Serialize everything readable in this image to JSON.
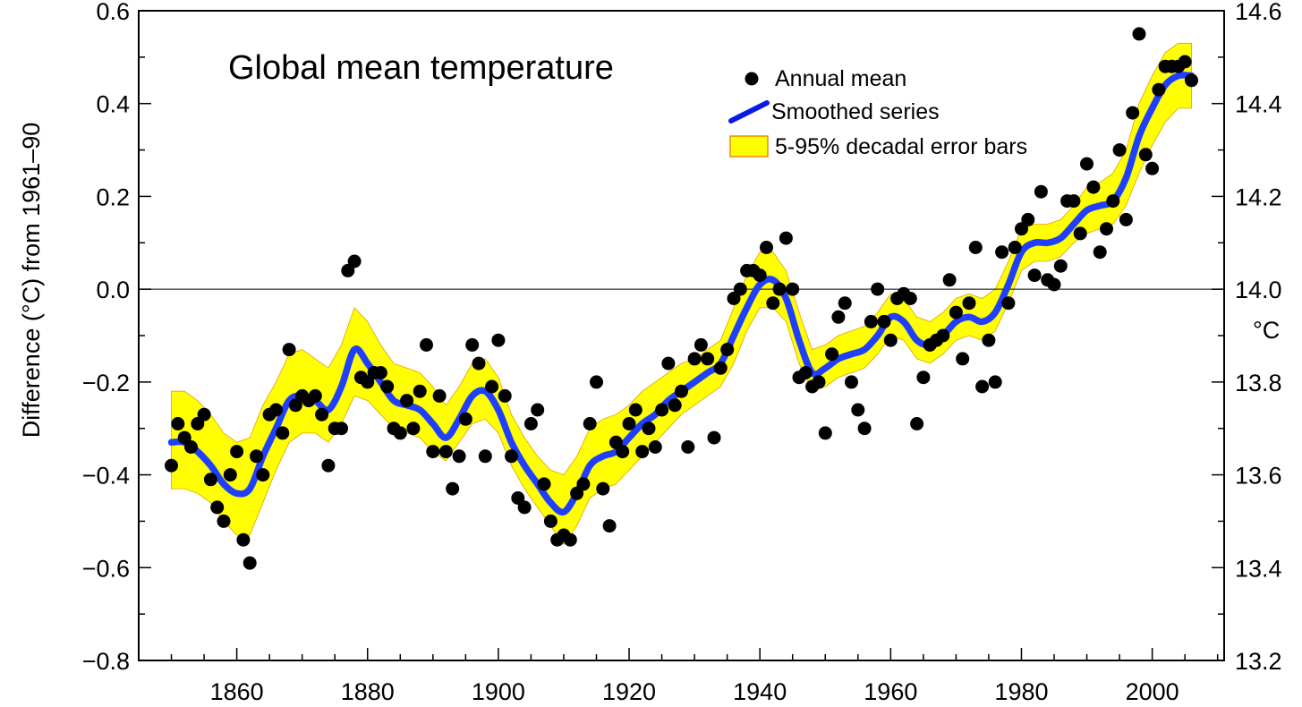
{
  "chart_data": {
    "type": "scatter",
    "title": "Global mean temperature",
    "ylabel": "Difference (°C) from 1961–90",
    "ylabel_right": "°C",
    "xlim": [
      1845,
      2011
    ],
    "ylim": [
      -0.8,
      0.6
    ],
    "ylim_right": [
      13.2,
      14.6
    ],
    "x_ticks": [
      1860,
      1880,
      1900,
      1920,
      1940,
      1960,
      1980,
      2000
    ],
    "x_tick_labels": [
      "1860",
      "1880",
      "1900",
      "1920",
      "1940",
      "1960",
      "1980",
      "2000"
    ],
    "y_ticks": [
      -0.8,
      -0.6,
      -0.4,
      -0.2,
      0.0,
      0.2,
      0.4,
      0.6
    ],
    "y_tick_labels": [
      "−0.8",
      "−0.6",
      "−0.4",
      "−0.2",
      "0.0",
      "0.2",
      "0.4",
      "0.6"
    ],
    "y_right_tick_labels": [
      "13.2",
      "13.4",
      "13.6",
      "13.8",
      "14.0",
      "14.2",
      "14.4",
      "14.6"
    ],
    "grid": false,
    "reference_line_y": 0.0,
    "legend_position": "top-right",
    "legend": [
      {
        "label": "Annual mean",
        "kind": "dot"
      },
      {
        "label": "Smoothed series",
        "kind": "line"
      },
      {
        "label": "5-95% decadal error bars",
        "kind": "band"
      }
    ],
    "colors": {
      "points": "#000000",
      "smoothed": "#1f3fff",
      "legend_line": "#0a1ae6",
      "band": "#ffff00",
      "band_edge": "#e0a000"
    },
    "series": [
      {
        "name": "Annual mean",
        "kind": "scatter",
        "x": [
          1850,
          1851,
          1852,
          1853,
          1854,
          1855,
          1856,
          1857,
          1858,
          1859,
          1860,
          1861,
          1862,
          1863,
          1864,
          1865,
          1866,
          1867,
          1868,
          1869,
          1870,
          1871,
          1872,
          1873,
          1874,
          1875,
          1876,
          1877,
          1878,
          1879,
          1880,
          1881,
          1882,
          1883,
          1884,
          1885,
          1886,
          1887,
          1888,
          1889,
          1890,
          1891,
          1892,
          1893,
          1894,
          1895,
          1896,
          1897,
          1898,
          1899,
          1900,
          1901,
          1902,
          1903,
          1904,
          1905,
          1906,
          1907,
          1908,
          1909,
          1910,
          1911,
          1912,
          1913,
          1914,
          1915,
          1916,
          1917,
          1918,
          1919,
          1920,
          1921,
          1922,
          1923,
          1924,
          1925,
          1926,
          1927,
          1928,
          1929,
          1930,
          1931,
          1932,
          1933,
          1934,
          1935,
          1936,
          1937,
          1938,
          1939,
          1940,
          1941,
          1942,
          1943,
          1944,
          1945,
          1946,
          1947,
          1948,
          1949,
          1950,
          1951,
          1952,
          1953,
          1954,
          1955,
          1956,
          1957,
          1958,
          1959,
          1960,
          1961,
          1962,
          1963,
          1964,
          1965,
          1966,
          1967,
          1968,
          1969,
          1970,
          1971,
          1972,
          1973,
          1974,
          1975,
          1976,
          1977,
          1978,
          1979,
          1980,
          1981,
          1982,
          1983,
          1984,
          1985,
          1986,
          1987,
          1988,
          1989,
          1990,
          1991,
          1992,
          1993,
          1994,
          1995,
          1996,
          1997,
          1998,
          1999,
          2000,
          2001,
          2002,
          2003,
          2004,
          2005,
          2006
        ],
        "y": [
          -0.38,
          -0.29,
          -0.32,
          -0.34,
          -0.29,
          -0.27,
          -0.41,
          -0.47,
          -0.5,
          -0.4,
          -0.35,
          -0.54,
          -0.59,
          -0.36,
          -0.4,
          -0.27,
          -0.26,
          -0.31,
          -0.13,
          -0.25,
          -0.23,
          -0.24,
          -0.23,
          -0.27,
          -0.38,
          -0.3,
          -0.3,
          0.04,
          0.06,
          -0.19,
          -0.2,
          -0.18,
          -0.18,
          -0.21,
          -0.3,
          -0.31,
          -0.24,
          -0.3,
          -0.22,
          -0.12,
          -0.35,
          -0.23,
          -0.35,
          -0.43,
          -0.36,
          -0.28,
          -0.12,
          -0.16,
          -0.36,
          -0.21,
          -0.11,
          -0.23,
          -0.36,
          -0.45,
          -0.47,
          -0.29,
          -0.26,
          -0.42,
          -0.5,
          -0.54,
          -0.53,
          -0.54,
          -0.44,
          -0.42,
          -0.29,
          -0.2,
          -0.43,
          -0.51,
          -0.33,
          -0.35,
          -0.29,
          -0.26,
          -0.35,
          -0.3,
          -0.34,
          -0.26,
          -0.16,
          -0.25,
          -0.22,
          -0.34,
          -0.15,
          -0.12,
          -0.15,
          -0.32,
          -0.17,
          -0.13,
          -0.02,
          0.0,
          0.04,
          0.04,
          0.03,
          0.09,
          -0.03,
          0.0,
          0.11,
          0.0,
          -0.19,
          -0.18,
          -0.21,
          -0.2,
          -0.31,
          -0.14,
          -0.06,
          -0.03,
          -0.2,
          -0.26,
          -0.3,
          -0.07,
          0.0,
          -0.07,
          -0.11,
          -0.02,
          -0.01,
          -0.02,
          -0.29,
          -0.19,
          -0.12,
          -0.11,
          -0.1,
          0.02,
          -0.05,
          -0.15,
          -0.03,
          0.09,
          -0.21,
          -0.11,
          -0.2,
          0.08,
          -0.03,
          0.09,
          0.13,
          0.15,
          0.03,
          0.21,
          0.02,
          0.01,
          0.05,
          0.19,
          0.19,
          0.12,
          0.27,
          0.22,
          0.08,
          0.13,
          0.19,
          0.3,
          0.15,
          0.38,
          0.55,
          0.29,
          0.26,
          0.43,
          0.48,
          0.48,
          0.48,
          0.49,
          0.45
        ]
      },
      {
        "name": "Smoothed series",
        "kind": "line",
        "x": [
          1850,
          1852,
          1854,
          1856,
          1858,
          1860,
          1862,
          1864,
          1866,
          1868,
          1870,
          1872,
          1874,
          1876,
          1878,
          1880,
          1882,
          1884,
          1886,
          1888,
          1890,
          1892,
          1894,
          1896,
          1898,
          1900,
          1902,
          1904,
          1906,
          1908,
          1910,
          1912,
          1914,
          1916,
          1918,
          1920,
          1922,
          1924,
          1926,
          1928,
          1930,
          1932,
          1934,
          1936,
          1938,
          1940,
          1942,
          1944,
          1946,
          1948,
          1950,
          1952,
          1954,
          1956,
          1958,
          1960,
          1962,
          1964,
          1966,
          1968,
          1970,
          1972,
          1974,
          1976,
          1978,
          1980,
          1982,
          1984,
          1986,
          1988,
          1990,
          1992,
          1994,
          1996,
          1998,
          2000,
          2002,
          2004,
          2006
        ],
        "y": [
          -0.33,
          -0.33,
          -0.35,
          -0.38,
          -0.42,
          -0.44,
          -0.43,
          -0.36,
          -0.3,
          -0.24,
          -0.23,
          -0.24,
          -0.26,
          -0.21,
          -0.13,
          -0.16,
          -0.2,
          -0.24,
          -0.25,
          -0.26,
          -0.29,
          -0.32,
          -0.28,
          -0.23,
          -0.22,
          -0.26,
          -0.33,
          -0.38,
          -0.42,
          -0.46,
          -0.48,
          -0.44,
          -0.38,
          -0.36,
          -0.35,
          -0.32,
          -0.29,
          -0.27,
          -0.24,
          -0.22,
          -0.2,
          -0.18,
          -0.16,
          -0.1,
          -0.04,
          0.01,
          0.02,
          -0.02,
          -0.11,
          -0.18,
          -0.17,
          -0.15,
          -0.14,
          -0.13,
          -0.1,
          -0.06,
          -0.07,
          -0.11,
          -0.12,
          -0.1,
          -0.07,
          -0.06,
          -0.07,
          -0.05,
          0.01,
          0.08,
          0.1,
          0.1,
          0.11,
          0.14,
          0.17,
          0.18,
          0.19,
          0.24,
          0.33,
          0.39,
          0.44,
          0.46,
          0.46
        ]
      },
      {
        "name": "5-95% decadal error bars",
        "kind": "band",
        "x": [
          1850,
          1852,
          1854,
          1856,
          1858,
          1860,
          1862,
          1864,
          1866,
          1868,
          1870,
          1872,
          1874,
          1876,
          1878,
          1880,
          1882,
          1884,
          1886,
          1888,
          1890,
          1892,
          1894,
          1896,
          1898,
          1900,
          1902,
          1904,
          1906,
          1908,
          1910,
          1912,
          1914,
          1916,
          1918,
          1920,
          1922,
          1924,
          1926,
          1928,
          1930,
          1932,
          1934,
          1936,
          1938,
          1940,
          1942,
          1944,
          1946,
          1948,
          1950,
          1952,
          1954,
          1956,
          1958,
          1960,
          1962,
          1964,
          1966,
          1968,
          1970,
          1972,
          1974,
          1976,
          1978,
          1980,
          1982,
          1984,
          1986,
          1988,
          1990,
          1992,
          1994,
          1996,
          1998,
          2000,
          2002,
          2004,
          2006
        ],
        "lower": [
          -0.43,
          -0.43,
          -0.44,
          -0.46,
          -0.5,
          -0.53,
          -0.53,
          -0.46,
          -0.39,
          -0.33,
          -0.31,
          -0.31,
          -0.33,
          -0.29,
          -0.23,
          -0.24,
          -0.27,
          -0.3,
          -0.31,
          -0.32,
          -0.35,
          -0.37,
          -0.33,
          -0.29,
          -0.28,
          -0.31,
          -0.38,
          -0.43,
          -0.47,
          -0.51,
          -0.55,
          -0.51,
          -0.45,
          -0.43,
          -0.42,
          -0.39,
          -0.36,
          -0.33,
          -0.3,
          -0.27,
          -0.25,
          -0.23,
          -0.21,
          -0.16,
          -0.09,
          -0.04,
          -0.04,
          -0.07,
          -0.16,
          -0.22,
          -0.21,
          -0.19,
          -0.18,
          -0.17,
          -0.14,
          -0.1,
          -0.11,
          -0.15,
          -0.16,
          -0.14,
          -0.11,
          -0.1,
          -0.11,
          -0.09,
          -0.03,
          0.04,
          0.06,
          0.06,
          0.07,
          0.1,
          0.12,
          0.13,
          0.14,
          0.18,
          0.25,
          0.31,
          0.36,
          0.39,
          0.39
        ],
        "upper": [
          -0.22,
          -0.22,
          -0.24,
          -0.27,
          -0.31,
          -0.33,
          -0.32,
          -0.25,
          -0.2,
          -0.14,
          -0.13,
          -0.15,
          -0.17,
          -0.12,
          -0.04,
          -0.07,
          -0.12,
          -0.16,
          -0.17,
          -0.18,
          -0.21,
          -0.25,
          -0.21,
          -0.16,
          -0.15,
          -0.19,
          -0.27,
          -0.32,
          -0.36,
          -0.39,
          -0.4,
          -0.36,
          -0.3,
          -0.28,
          -0.27,
          -0.25,
          -0.22,
          -0.2,
          -0.18,
          -0.16,
          -0.15,
          -0.13,
          -0.11,
          -0.04,
          0.03,
          0.08,
          0.08,
          0.04,
          -0.05,
          -0.13,
          -0.12,
          -0.1,
          -0.09,
          -0.08,
          -0.05,
          -0.01,
          -0.02,
          -0.06,
          -0.07,
          -0.05,
          -0.02,
          -0.01,
          -0.02,
          0.0,
          0.06,
          0.13,
          0.14,
          0.14,
          0.15,
          0.18,
          0.22,
          0.23,
          0.25,
          0.3,
          0.4,
          0.46,
          0.51,
          0.53,
          0.53
        ]
      }
    ]
  }
}
